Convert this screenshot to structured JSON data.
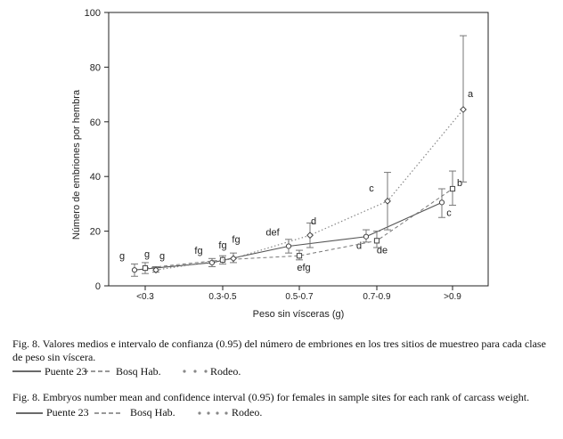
{
  "chart_data": {
    "type": "line",
    "xlabel": "Peso sin vísceras (g)",
    "ylabel": "Número de embriones por hembra",
    "ylim": [
      0,
      100
    ],
    "yticks": [
      "0",
      "20",
      "40",
      "60",
      "80",
      "100"
    ],
    "categories": [
      "<0.3",
      "0.3-0.5",
      "0.5-0.7",
      "0.7-0.9",
      ">0.9"
    ],
    "grid": false,
    "series": [
      {
        "name": "Puente 23",
        "style": "solid",
        "values": [
          5.8,
          8.5,
          14.5,
          18.0,
          30.5
        ],
        "lower": [
          3.5,
          7.0,
          12.0,
          16.0,
          25.0
        ],
        "upper": [
          8.0,
          10.0,
          17.0,
          20.5,
          35.5
        ],
        "labels": [
          "g",
          "fg",
          "def",
          "d",
          "c"
        ]
      },
      {
        "name": "Bosq Hab.",
        "style": "dashed",
        "values": [
          6.5,
          9.5,
          11.0,
          16.5,
          35.5
        ],
        "lower": [
          4.5,
          8.0,
          9.5,
          14.0,
          29.5
        ],
        "upper": [
          8.5,
          11.0,
          13.0,
          20.0,
          42.0
        ],
        "labels": [
          "g",
          "fg",
          "efg",
          "de",
          "b"
        ]
      },
      {
        "name": "Rodeo",
        "style": "dotted",
        "values": [
          5.8,
          10.0,
          18.5,
          31.0,
          64.5
        ],
        "lower": [
          5.0,
          8.5,
          14.0,
          20.5,
          38.0
        ],
        "upper": [
          7.0,
          12.0,
          23.0,
          41.5,
          91.5
        ],
        "labels": [
          "g",
          "fg",
          "d",
          "c",
          "a"
        ]
      }
    ]
  },
  "caption_es": "Fig. 8. Valores medios  e intervalo de confianza (0.95) del número de embriones en los tres sitios de muestreo para cada clase de peso sin víscera.",
  "caption_en": "Fig. 8. Embryos number mean and confidence interval (0.95) for females in sample sites for each rank of carcass weight.",
  "legend_es": [
    "Puente 23",
    "Bosq Hab.",
    "Rodeo."
  ],
  "legend_en": [
    "Puente 23",
    "Bosq Hab.",
    "Rodeo."
  ],
  "colors": {
    "solid": "#555555",
    "dashed": "#777777",
    "dotted": "#888888",
    "axis": "#222222"
  }
}
